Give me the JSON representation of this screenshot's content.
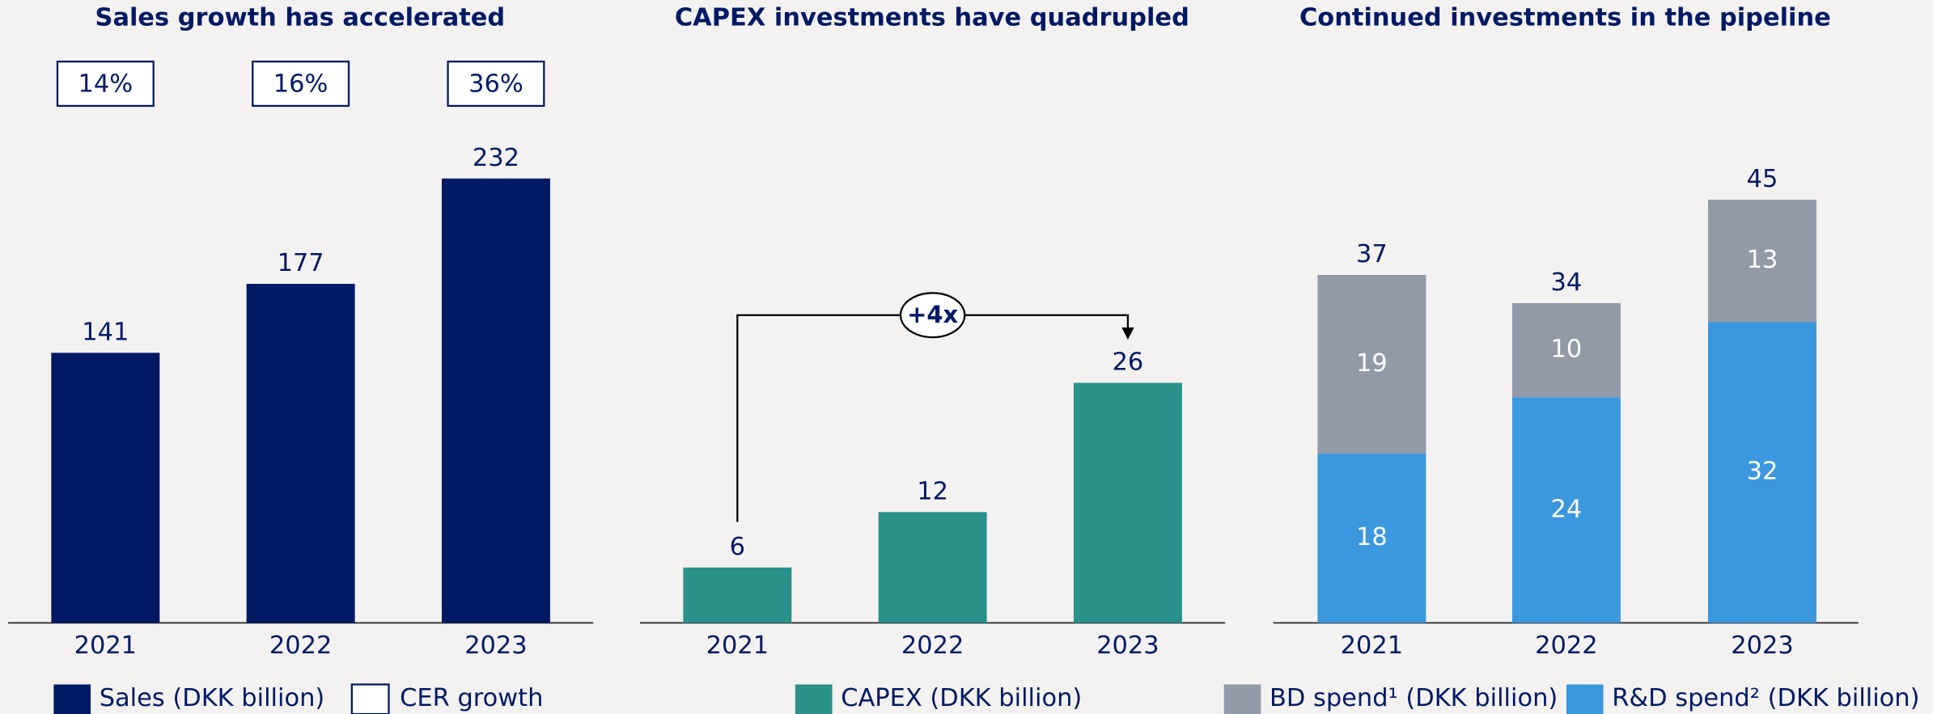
{
  "chart_data": [
    {
      "type": "bar",
      "title": "Sales growth has accelerated",
      "categories": [
        "2021",
        "2022",
        "2023"
      ],
      "series": [
        {
          "name": "Sales (DKK billion)",
          "color": "#001965",
          "values": [
            141,
            177,
            232
          ]
        }
      ],
      "growth": {
        "name": "CER growth",
        "values": [
          14,
          16,
          36
        ],
        "value_labels": [
          "14%",
          "16%",
          "36%"
        ]
      }
    },
    {
      "type": "bar",
      "title": "CAPEX investments have quadrupled",
      "categories": [
        "2021",
        "2022",
        "2023"
      ],
      "series": [
        {
          "name": "CAPEX (DKK billion)",
          "color": "#2a918b",
          "values": [
            6,
            12,
            26
          ]
        }
      ],
      "annotation": "+4x"
    },
    {
      "type": "stacked_bar",
      "title": "Continued investments in the pipeline",
      "categories": [
        "2021",
        "2022",
        "2023"
      ],
      "series": [
        {
          "name": "BD spend¹ (DKK billion)",
          "color": "#939aa7",
          "values": [
            19,
            10,
            13
          ]
        },
        {
          "name": "R&D spend² (DKK billion)",
          "color": "#3b97de",
          "values": [
            18,
            24,
            32
          ]
        }
      ],
      "totals": [
        37,
        34,
        45
      ]
    }
  ]
}
